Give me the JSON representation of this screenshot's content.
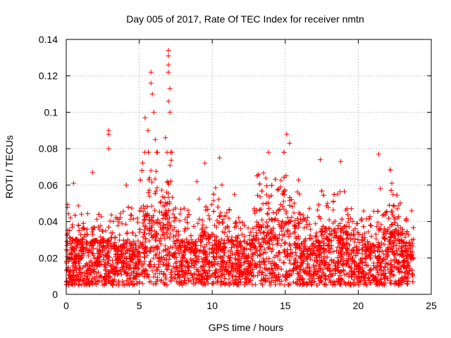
{
  "chart_data": {
    "type": "scatter",
    "title": "Day 005 of 2017, Rate Of TEC Index for receiver nmtn",
    "xlabel": "GPS time / hours",
    "ylabel": "ROTI / TECUs",
    "xlim": [
      0,
      25
    ],
    "ylim": [
      0,
      0.14
    ],
    "xticks": [
      0,
      5,
      10,
      15,
      20,
      25
    ],
    "xtick_labels": [
      "0",
      "5",
      "10",
      "15",
      "20",
      "25"
    ],
    "yticks": [
      0,
      0.02,
      0.04,
      0.06,
      0.08,
      0.1,
      0.12,
      0.14
    ],
    "ytick_labels": [
      "0",
      "0.02",
      "0.04",
      "0.06",
      "0.08",
      "0.1",
      "0.12",
      "0.14"
    ],
    "grid": true,
    "marker": "+",
    "color": "#ff0000",
    "series": [
      {
        "name": "ROTI",
        "x_range_hours": [
          0,
          23.8
        ],
        "baseline_typical": [
          0.005,
          0.03
        ],
        "notable_points": [
          {
            "x": 0.5,
            "y": 0.061
          },
          {
            "x": 1.8,
            "y": 0.067
          },
          {
            "x": 2.9,
            "y": 0.09
          },
          {
            "x": 2.9,
            "y": 0.088
          },
          {
            "x": 2.9,
            "y": 0.08
          },
          {
            "x": 5.4,
            "y": 0.097
          },
          {
            "x": 5.8,
            "y": 0.122
          },
          {
            "x": 5.8,
            "y": 0.116
          },
          {
            "x": 5.9,
            "y": 0.11
          },
          {
            "x": 6.0,
            "y": 0.1
          },
          {
            "x": 5.6,
            "y": 0.09
          },
          {
            "x": 6.1,
            "y": 0.085
          },
          {
            "x": 6.8,
            "y": 0.086
          },
          {
            "x": 6.9,
            "y": 0.078
          },
          {
            "x": 7.0,
            "y": 0.134
          },
          {
            "x": 7.0,
            "y": 0.131
          },
          {
            "x": 7.0,
            "y": 0.126
          },
          {
            "x": 7.0,
            "y": 0.122
          },
          {
            "x": 7.1,
            "y": 0.113
          },
          {
            "x": 7.0,
            "y": 0.106
          },
          {
            "x": 7.1,
            "y": 0.1
          },
          {
            "x": 9.5,
            "y": 0.072
          },
          {
            "x": 10.5,
            "y": 0.075
          },
          {
            "x": 15.1,
            "y": 0.088
          },
          {
            "x": 15.3,
            "y": 0.083
          },
          {
            "x": 17.4,
            "y": 0.074
          },
          {
            "x": 18.8,
            "y": 0.073
          },
          {
            "x": 21.4,
            "y": 0.077
          },
          {
            "x": 22.3,
            "y": 0.061
          }
        ]
      }
    ]
  }
}
